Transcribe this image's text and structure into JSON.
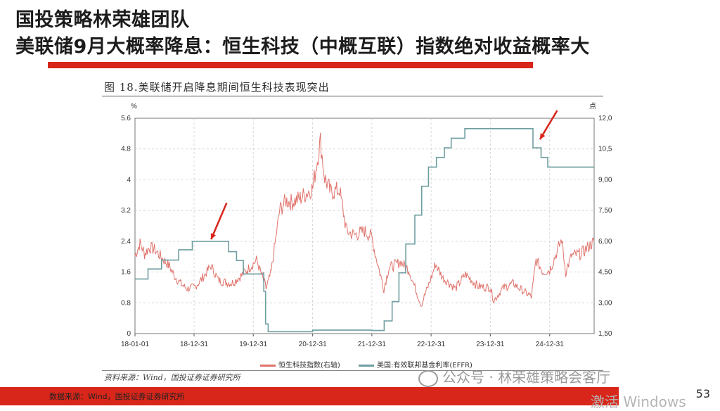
{
  "slide": {
    "title_line1": "国投策略林荣雄团队",
    "title_line2": "美联储9月大概率降息：恒生科技（中概互联）指数绝对收益概率大",
    "figure_title": "图 18.美联储开启降息期间恒生科技表现突出",
    "source_in_figure": "资料来源：Wind，国投证券证券研究所",
    "footer_source": "数据来源：Wind，国投证券证券研究所",
    "page_number": "53",
    "wechat_watermark": "公众号 · 林荣雄策略会客厅",
    "os_watermark": "激活 Windows",
    "colors": {
      "accent_red": "#d8261a",
      "hstech": "#e0736c",
      "effr": "#6f9ea0"
    }
  },
  "chart_data": {
    "type": "line",
    "left_axis": {
      "unit": "%",
      "range": [
        0,
        5.6
      ],
      "ticks": [
        "0",
        "0.8",
        "1.6",
        "2.4",
        "3.2",
        "4",
        "4.8",
        "5.6"
      ]
    },
    "right_axis": {
      "unit": "点",
      "range": [
        1500,
        12000
      ],
      "ticks": [
        "1,500",
        "3,000",
        "4,500",
        "6,000",
        "7,500",
        "9,000",
        "10,500",
        "12,000"
      ]
    },
    "x_range": [
      "2018-01-01",
      "2025-10-01"
    ],
    "x_ticks": [
      "18-01-01",
      "18-12-31",
      "19-12-31",
      "20-12-31",
      "21-12-31",
      "22-12-31",
      "23-12-31",
      "24-12-31"
    ],
    "grid": true,
    "legend_position": "bottom",
    "series": [
      {
        "name": "恒生科技指数(右轴)",
        "axis": "right",
        "points": [
          [
            "2018-01-01",
            5300
          ],
          [
            "2018-02-01",
            5900
          ],
          [
            "2018-03-01",
            5400
          ],
          [
            "2018-04-01",
            5700
          ],
          [
            "2018-05-01",
            5600
          ],
          [
            "2018-06-15",
            5200
          ],
          [
            "2018-08-01",
            4800
          ],
          [
            "2018-09-01",
            4300
          ],
          [
            "2018-10-15",
            3900
          ],
          [
            "2018-11-15",
            3700
          ],
          [
            "2018-12-31",
            3750
          ],
          [
            "2019-02-01",
            4000
          ],
          [
            "2019-04-15",
            4800
          ],
          [
            "2019-05-30",
            4100
          ],
          [
            "2019-07-15",
            4000
          ],
          [
            "2019-08-20",
            3950
          ],
          [
            "2019-10-15",
            4300
          ],
          [
            "2019-12-31",
            4900
          ],
          [
            "2020-01-20",
            5100
          ],
          [
            "2020-03-19",
            3700
          ],
          [
            "2020-04-20",
            4500
          ],
          [
            "2020-06-10",
            7500
          ],
          [
            "2020-07-20",
            8000
          ],
          [
            "2020-08-20",
            7900
          ],
          [
            "2020-10-15",
            8100
          ],
          [
            "2020-12-31",
            8600
          ],
          [
            "2021-02-17",
            10900
          ],
          [
            "2021-03-15",
            9100
          ],
          [
            "2021-04-20",
            8400
          ],
          [
            "2021-06-15",
            8500
          ],
          [
            "2021-07-28",
            6500
          ],
          [
            "2021-09-15",
            6300
          ],
          [
            "2021-11-15",
            6500
          ],
          [
            "2021-12-31",
            6200
          ],
          [
            "2022-01-20",
            5400
          ],
          [
            "2022-03-15",
            3700
          ],
          [
            "2022-04-15",
            4700
          ],
          [
            "2022-06-28",
            5000
          ],
          [
            "2022-08-15",
            4600
          ],
          [
            "2022-10-31",
            2900
          ],
          [
            "2022-12-31",
            4200
          ],
          [
            "2023-01-27",
            4900
          ],
          [
            "2023-03-15",
            4200
          ],
          [
            "2023-05-31",
            3700
          ],
          [
            "2023-07-31",
            4400
          ],
          [
            "2023-10-15",
            3800
          ],
          [
            "2023-12-31",
            3750
          ],
          [
            "2024-01-22",
            3100
          ],
          [
            "2024-03-15",
            3700
          ],
          [
            "2024-05-20",
            3950
          ],
          [
            "2024-07-15",
            3600
          ],
          [
            "2024-09-10",
            3300
          ],
          [
            "2024-10-08",
            5100
          ],
          [
            "2024-11-20",
            4500
          ],
          [
            "2024-12-31",
            4600
          ],
          [
            "2025-02-20",
            5600
          ],
          [
            "2025-03-15",
            6100
          ],
          [
            "2025-04-08",
            4500
          ],
          [
            "2025-05-15",
            5300
          ],
          [
            "2025-07-15",
            5400
          ],
          [
            "2025-09-30",
            6000
          ]
        ]
      },
      {
        "name": "美国:有效联邦基金利率(EFFR)",
        "axis": "left",
        "points": [
          [
            "2018-01-01",
            1.42
          ],
          [
            "2018-03-22",
            1.68
          ],
          [
            "2018-06-14",
            1.91
          ],
          [
            "2018-09-27",
            2.18
          ],
          [
            "2018-12-20",
            2.4
          ],
          [
            "2019-06-30",
            2.4
          ],
          [
            "2019-08-01",
            2.13
          ],
          [
            "2019-09-19",
            1.9
          ],
          [
            "2019-10-31",
            1.55
          ],
          [
            "2020-03-04",
            1.58
          ],
          [
            "2020-03-05",
            1.1
          ],
          [
            "2020-03-16",
            0.25
          ],
          [
            "2020-04-01",
            0.05
          ],
          [
            "2020-12-31",
            0.09
          ],
          [
            "2021-12-31",
            0.08
          ],
          [
            "2022-03-17",
            0.33
          ],
          [
            "2022-05-05",
            0.83
          ],
          [
            "2022-06-16",
            1.58
          ],
          [
            "2022-07-28",
            2.33
          ],
          [
            "2022-09-22",
            3.08
          ],
          [
            "2022-11-03",
            3.83
          ],
          [
            "2022-12-15",
            4.33
          ],
          [
            "2023-02-02",
            4.58
          ],
          [
            "2023-03-23",
            4.83
          ],
          [
            "2023-05-04",
            5.08
          ],
          [
            "2023-07-27",
            5.33
          ],
          [
            "2024-09-18",
            5.33
          ],
          [
            "2024-09-19",
            4.83
          ],
          [
            "2024-11-08",
            4.58
          ],
          [
            "2024-12-19",
            4.33
          ],
          [
            "2025-09-30",
            4.33
          ]
        ]
      }
    ],
    "annotations": [
      "arrow-2019-cuts",
      "arrow-2024-cuts"
    ]
  }
}
